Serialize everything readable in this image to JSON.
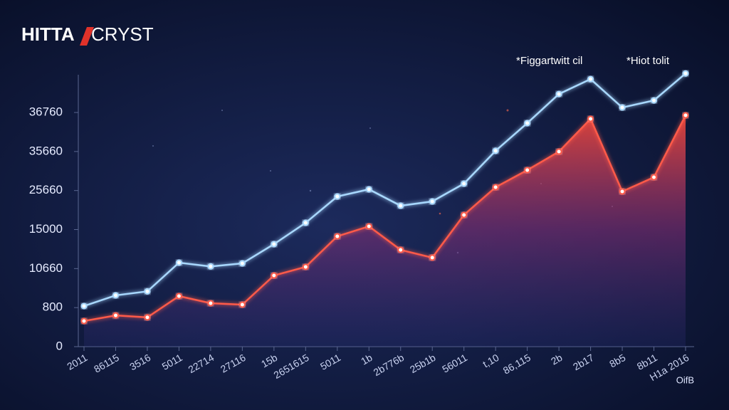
{
  "chart_data": {
    "type": "line",
    "title": "HITTA",
    "title_suffix": "CRYST",
    "categories": [
      "2011",
      "86115",
      "3516",
      "5011",
      "22714",
      "27116",
      "15b",
      "2651615",
      "5011",
      "1b",
      "2b776b",
      "25b1b",
      "56011",
      "t,10",
      "86,115",
      "2b",
      "2b17",
      "8b5",
      "8b11",
      "H1a 2016"
    ],
    "series": [
      {
        "name": "*Figgartwitt cil",
        "color": "#a8d8ff",
        "values": [
          1200,
          3900,
          4900,
          11320,
          10900,
          11240,
          13380,
          16840,
          24040,
          25970,
          21510,
          22680,
          27430,
          35680,
          36460,
          37280,
          37700,
          36900,
          37100,
          37860
        ]
      },
      {
        "name": "*Hiot tolit",
        "color": "#ff5a48",
        "values": [
          525,
          640,
          600,
          3710,
          1910,
          1550,
          8920,
          10850,
          14250,
          15870,
          12740,
          11880,
          18990,
          26510,
          30890,
          35630,
          36580,
          25400,
          29070,
          36680
        ]
      }
    ],
    "ylim": [
      0,
      38500
    ],
    "yticks": [
      0,
      800,
      10660,
      15000,
      25660,
      35660,
      36760
    ],
    "annotation": "OifB",
    "legend": "top-right"
  }
}
